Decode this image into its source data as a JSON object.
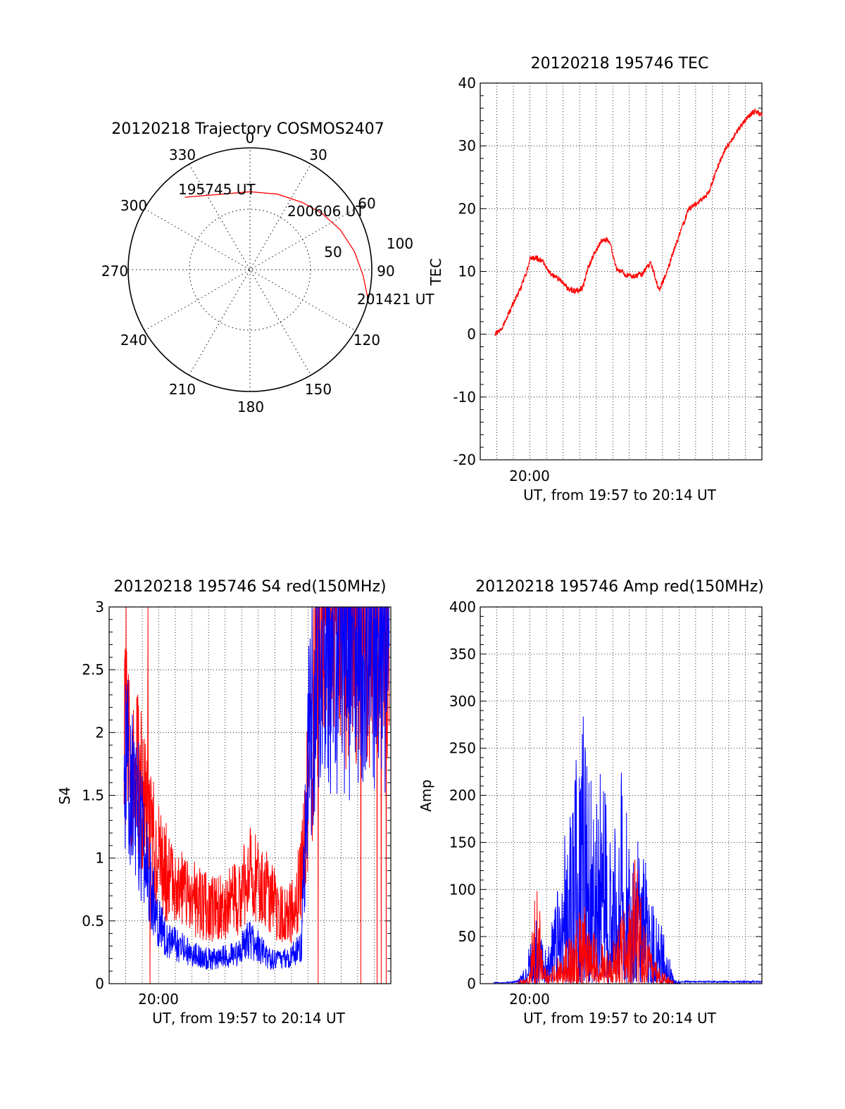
{
  "colors": {
    "red": "#ff0000",
    "blue": "#0000ff",
    "axis": "#000000"
  },
  "chart_data": [
    {
      "id": "trajectory",
      "type": "polar",
      "title": "20120218 Trajectory COSMOS2407",
      "azimuth_labels": [
        "0",
        "30",
        "60",
        "90",
        "120",
        "150",
        "180",
        "210",
        "240",
        "270",
        "300",
        "330"
      ],
      "radial_labels": [
        "50",
        "100"
      ],
      "time_labels": [
        "195745 UT",
        "200606 UT",
        "201421 UT"
      ],
      "trajectory": [
        {
          "azimuth": 318,
          "zenith": 80
        },
        {
          "azimuth": 340,
          "zenith": 66
        },
        {
          "azimuth": 0,
          "zenith": 64
        },
        {
          "azimuth": 20,
          "zenith": 66
        },
        {
          "azimuth": 38,
          "zenith": 70
        },
        {
          "azimuth": 52,
          "zenith": 75
        },
        {
          "azimuth": 66,
          "zenith": 81
        },
        {
          "azimuth": 80,
          "zenith": 87
        },
        {
          "azimuth": 93,
          "zenith": 93
        },
        {
          "azimuth": 103,
          "zenith": 99
        }
      ],
      "grid": true
    },
    {
      "id": "tec",
      "type": "line",
      "title": "20120218 195746 TEC",
      "ylabel": "TEC",
      "xlabel": "UT, from 19:57 to 20:14 UT",
      "x_tick_labels": [
        "20:00"
      ],
      "y_tick_labels": [
        "-20",
        "-10",
        "0",
        "10",
        "20",
        "30",
        "40"
      ],
      "xlim_minutes": [
        0,
        17
      ],
      "ylim": [
        -20,
        40
      ],
      "grid": true,
      "series": [
        {
          "color": "#ff0000",
          "x_minutes": [
            0.9,
            1.2,
            1.6,
            2.0,
            2.4,
            2.8,
            3.0,
            3.4,
            3.8,
            4.3,
            4.9,
            5.3,
            5.8,
            6.2,
            6.5,
            6.9,
            7.3,
            7.8,
            8.2,
            8.8,
            9.3,
            9.8,
            10.3,
            10.8,
            11.2,
            11.7,
            12.1,
            12.6,
            13.2,
            13.8,
            14.3,
            14.8,
            15.3,
            15.8,
            16.3,
            16.6,
            17.0
          ],
          "values": [
            0.0,
            0.5,
            2.5,
            5.0,
            7.0,
            10.0,
            12.0,
            12.2,
            11.5,
            9.5,
            8.5,
            7.2,
            6.8,
            7.5,
            10.5,
            13.0,
            14.8,
            15.0,
            10.5,
            9.5,
            9.3,
            9.6,
            11.5,
            7.0,
            9.5,
            13.5,
            16.5,
            20.0,
            21.0,
            22.5,
            26.5,
            29.5,
            31.5,
            33.5,
            35.0,
            35.5,
            35.0
          ]
        }
      ]
    },
    {
      "id": "s4",
      "type": "line",
      "title": "20120218 195746 S4 red(150MHz)",
      "ylabel": "S4",
      "xlabel": "UT, from 19:57 to 20:14 UT",
      "x_tick_labels": [
        "20:00"
      ],
      "y_tick_labels": [
        "0",
        "0.5",
        "1",
        "1.5",
        "2",
        "2.5",
        "3"
      ],
      "xlim_minutes": [
        0,
        17
      ],
      "ylim": [
        0,
        3
      ],
      "grid": true,
      "series": [
        {
          "color": "#ff0000",
          "x_minutes": [
            0.9,
            1.3,
            1.8,
            2.3,
            3.0,
            3.6,
            4.2,
            4.8,
            5.4,
            6.0,
            6.6,
            7.2,
            7.8,
            8.4,
            9.0,
            9.6,
            10.2,
            10.8,
            11.2,
            11.6,
            12.0,
            12.5,
            13.0,
            13.5,
            14.0,
            14.5,
            15.0,
            15.5,
            16.0,
            16.5,
            16.9
          ],
          "values": [
            2.0,
            1.7,
            1.6,
            1.3,
            1.0,
            0.85,
            0.8,
            0.7,
            0.65,
            0.6,
            0.6,
            0.65,
            0.7,
            0.85,
            0.9,
            0.7,
            0.6,
            0.55,
            0.6,
            0.9,
            1.5,
            2.5,
            3.0,
            3.0,
            3.0,
            3.0,
            3.0,
            3.0,
            3.0,
            3.0,
            3.0
          ]
        },
        {
          "color": "#0000ff",
          "x_minutes": [
            0.9,
            1.3,
            1.8,
            2.3,
            3.0,
            3.6,
            4.2,
            4.8,
            5.4,
            6.0,
            6.6,
            7.2,
            7.8,
            8.4,
            9.0,
            9.6,
            10.2,
            10.8,
            11.2,
            11.6,
            12.0,
            12.5,
            13.0,
            13.5,
            14.0,
            14.5,
            15.0,
            15.5,
            16.0,
            16.5,
            16.9
          ],
          "values": [
            1.8,
            1.6,
            1.3,
            0.9,
            0.5,
            0.35,
            0.3,
            0.25,
            0.22,
            0.2,
            0.2,
            0.22,
            0.25,
            0.35,
            0.3,
            0.2,
            0.18,
            0.2,
            0.25,
            0.3,
            1.8,
            2.4,
            2.8,
            2.6,
            2.8,
            2.6,
            2.8,
            2.7,
            2.8,
            2.6,
            2.8
          ]
        }
      ]
    },
    {
      "id": "amp",
      "type": "line",
      "title": "20120218 195746 Amp red(150MHz)",
      "ylabel": "Amp",
      "xlabel": "UT, from 19:57 to 20:14 UT",
      "x_tick_labels": [
        "20:00"
      ],
      "y_tick_labels": [
        "0",
        "50",
        "100",
        "150",
        "200",
        "250",
        "300",
        "350",
        "400"
      ],
      "xlim_minutes": [
        0,
        17
      ],
      "ylim": [
        0,
        400
      ],
      "grid": true,
      "series": [
        {
          "color": "#0000ff",
          "x_minutes": [
            0.8,
            1.5,
            2.2,
            2.6,
            3.0,
            3.4,
            3.8,
            4.2,
            4.6,
            5.0,
            5.4,
            5.8,
            6.2,
            6.6,
            7.0,
            7.4,
            7.8,
            8.2,
            8.6,
            9.0,
            9.4,
            9.8,
            10.2,
            10.6,
            11.0,
            11.3,
            11.7,
            12.5,
            14.0,
            17.0
          ],
          "values": [
            1,
            1,
            2,
            15,
            45,
            70,
            55,
            60,
            110,
            150,
            180,
            240,
            300,
            220,
            260,
            230,
            200,
            170,
            240,
            210,
            160,
            140,
            120,
            90,
            60,
            40,
            5,
            2,
            2,
            2
          ]
        },
        {
          "color": "#ff0000",
          "x_minutes": [
            0.8,
            2.2,
            2.6,
            3.0,
            3.4,
            3.8,
            4.2,
            4.6,
            5.0,
            5.4,
            5.8,
            6.2,
            6.6,
            7.0,
            7.4,
            7.8,
            8.2,
            8.6,
            9.0,
            9.4,
            9.8,
            10.2,
            10.6,
            11.0,
            11.3,
            11.7,
            17.0
          ],
          "values": [
            0,
            0,
            5,
            15,
            160,
            20,
            15,
            25,
            40,
            55,
            70,
            95,
            60,
            50,
            45,
            40,
            50,
            80,
            90,
            155,
            70,
            40,
            25,
            15,
            10,
            0,
            0
          ]
        }
      ]
    }
  ]
}
